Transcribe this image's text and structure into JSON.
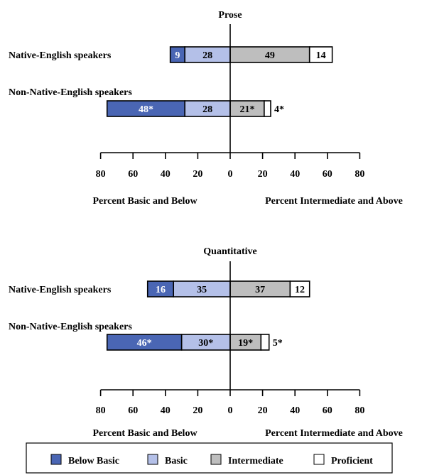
{
  "colors": {
    "below_basic": "#4A66B4",
    "basic": "#B4C0E8",
    "intermediate": "#BEBEBE",
    "proficient": "#FFFFFF",
    "outline": "#000000"
  },
  "legend": {
    "items": [
      {
        "key": "below_basic",
        "label": "Below Basic"
      },
      {
        "key": "basic",
        "label": "Basic"
      },
      {
        "key": "intermediate",
        "label": "Intermediate"
      },
      {
        "key": "proficient",
        "label": "Proficient"
      }
    ]
  },
  "chart_data": [
    {
      "type": "bar",
      "orientation": "horizontal-diverging",
      "title": "Prose",
      "xlabel_left": "Percent Basic and Below",
      "xlabel_right": "Percent Intermediate and Above",
      "xlim": [
        -80,
        80
      ],
      "xticks": [
        80,
        60,
        40,
        20,
        0,
        20,
        40,
        60,
        80
      ],
      "categories": [
        "Native-English speakers",
        "Non-Native-English speakers"
      ],
      "series": [
        {
          "name": "Below Basic",
          "side": "left",
          "values": [
            9,
            48
          ],
          "labels": [
            "9",
            "48*"
          ]
        },
        {
          "name": "Basic",
          "side": "left",
          "values": [
            28,
            28
          ],
          "labels": [
            "28",
            "28"
          ]
        },
        {
          "name": "Intermediate",
          "side": "right",
          "values": [
            49,
            21
          ],
          "labels": [
            "49",
            "21*"
          ]
        },
        {
          "name": "Proficient",
          "side": "right",
          "values": [
            14,
            4
          ],
          "labels": [
            "14",
            "4*"
          ]
        }
      ]
    },
    {
      "type": "bar",
      "orientation": "horizontal-diverging",
      "title": "Quantitative",
      "xlabel_left": "Percent Basic and Below",
      "xlabel_right": "Percent Intermediate and Above",
      "xlim": [
        -80,
        80
      ],
      "xticks": [
        80,
        60,
        40,
        20,
        0,
        20,
        40,
        60,
        80
      ],
      "categories": [
        "Native-English speakers",
        "Non-Native-English speakers"
      ],
      "series": [
        {
          "name": "Below Basic",
          "side": "left",
          "values": [
            16,
            46
          ],
          "labels": [
            "16",
            "46*"
          ]
        },
        {
          "name": "Basic",
          "side": "left",
          "values": [
            35,
            30
          ],
          "labels": [
            "35",
            "30*"
          ]
        },
        {
          "name": "Intermediate",
          "side": "right",
          "values": [
            37,
            19
          ],
          "labels": [
            "37",
            "19*"
          ]
        },
        {
          "name": "Proficient",
          "side": "right",
          "values": [
            12,
            5
          ],
          "labels": [
            "12",
            "5*"
          ]
        }
      ]
    }
  ]
}
